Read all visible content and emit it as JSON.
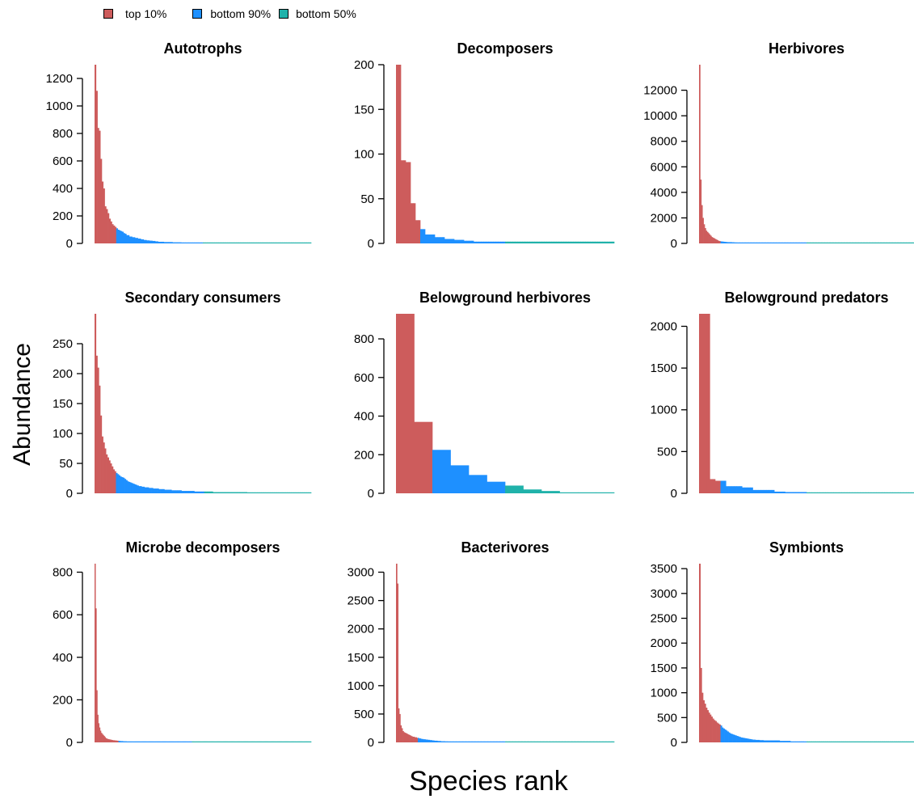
{
  "legend": {
    "items": [
      {
        "label": "top 10%",
        "color": "#CD5C5C"
      },
      {
        "label": "bottom 90%",
        "color": "#1E90FF"
      },
      {
        "label": "bottom 50%",
        "color": "#20B2AA"
      }
    ]
  },
  "axes": {
    "ylabel": "Abundance",
    "xlabel": "Species rank"
  },
  "chart_data": [
    {
      "type": "bar",
      "title": "Autotrophs",
      "ylim": [
        0,
        1300
      ],
      "yticks": [
        0,
        200,
        400,
        600,
        800,
        1000,
        1200
      ],
      "values": [
        1300,
        1110,
        840,
        820,
        615,
        450,
        400,
        270,
        250,
        220,
        180,
        160,
        140,
        130,
        120,
        110,
        100,
        95,
        90,
        85,
        75,
        70,
        60,
        60,
        50,
        50,
        45,
        45,
        40,
        40,
        35,
        35,
        30,
        30,
        25,
        25,
        22,
        22,
        20,
        20,
        18,
        18,
        15,
        15,
        12,
        12,
        12,
        12,
        10,
        10,
        10,
        10,
        10,
        10,
        8,
        8,
        8,
        8,
        8,
        8,
        6,
        6,
        6,
        6,
        6,
        6,
        4,
        4,
        4,
        4,
        4,
        4,
        4,
        4,
        3,
        3,
        3,
        3,
        3,
        3,
        3,
        3,
        2,
        2,
        2,
        2,
        2,
        2,
        2,
        2,
        2,
        2,
        2,
        2,
        2,
        2,
        2,
        2,
        1,
        1,
        1,
        1,
        1,
        1,
        1,
        1,
        1,
        1,
        1,
        1,
        1,
        1,
        1,
        1,
        1,
        1,
        1,
        1,
        1,
        1,
        1,
        1,
        1,
        1,
        1,
        1,
        1,
        1,
        1,
        1,
        1,
        1,
        1,
        1,
        1,
        1,
        1,
        1,
        1,
        1,
        1,
        1,
        1,
        1,
        1,
        1,
        1,
        1,
        1,
        1
      ],
      "n_top10": 15,
      "n_bottom50": 75
    },
    {
      "type": "bar",
      "title": "Decomposers",
      "ylim": [
        0,
        200
      ],
      "yticks": [
        0,
        50,
        100,
        150,
        200
      ],
      "values": [
        205,
        205,
        93,
        93,
        91,
        91,
        45,
        45,
        26,
        26,
        16,
        16,
        10,
        10,
        10,
        10,
        7,
        7,
        7,
        7,
        5,
        5,
        5,
        5,
        4,
        4,
        4,
        4,
        3,
        3,
        3,
        3,
        2,
        2,
        2,
        2,
        2,
        2,
        2,
        2,
        2,
        2,
        2,
        2,
        2,
        2,
        2,
        2,
        2,
        2,
        2,
        2,
        2,
        2,
        2,
        2,
        2,
        2,
        2,
        2,
        2,
        2,
        2,
        2,
        2,
        2,
        2,
        2,
        2,
        2,
        2,
        2,
        2,
        2,
        2,
        2,
        2,
        2,
        2,
        2,
        2,
        2,
        2,
        2,
        2,
        2,
        2,
        2,
        2,
        2
      ],
      "n_top10": 10,
      "n_bottom50": 45
    },
    {
      "type": "bar",
      "title": "Herbivores",
      "ylim": [
        0,
        14000
      ],
      "yticks": [
        0,
        2000,
        4000,
        6000,
        8000,
        10000,
        12000
      ],
      "values": [
        14000,
        5000,
        3000,
        2000,
        1500,
        1200,
        1000,
        900,
        800,
        700,
        600,
        500,
        450,
        400,
        350,
        300,
        250,
        200,
        180,
        160,
        150,
        140,
        130,
        120,
        110,
        100,
        100,
        100,
        100,
        90,
        90,
        80,
        80,
        70,
        70,
        60,
        60,
        55,
        55,
        50,
        50,
        45,
        45,
        40,
        40,
        35,
        35,
        30,
        30,
        30,
        25,
        25,
        25,
        20,
        20,
        20,
        20,
        18,
        18,
        18,
        15,
        15,
        15,
        15,
        12,
        12,
        12,
        12,
        10,
        10,
        10,
        10,
        10,
        10,
        8,
        8,
        8,
        8,
        8,
        8,
        7,
        7,
        7,
        7,
        7,
        7,
        6,
        6,
        6,
        6,
        6,
        6,
        5,
        5,
        5,
        5,
        5,
        5,
        5,
        5,
        4,
        4,
        4,
        4,
        4,
        4,
        4,
        4,
        4,
        4,
        3,
        3,
        3,
        3,
        3,
        3,
        3,
        3,
        3,
        3,
        3,
        3,
        2,
        2,
        2,
        2,
        2,
        2,
        2,
        2,
        2,
        2,
        2,
        2,
        2,
        2,
        2,
        2,
        2,
        2,
        1,
        1,
        1,
        1,
        1,
        1,
        1,
        1,
        1,
        1,
        1,
        1,
        1,
        1,
        1,
        1,
        1,
        1,
        1,
        1,
        1,
        1,
        1,
        1,
        1,
        1,
        1,
        1,
        1,
        1,
        1,
        1,
        1,
        1,
        1,
        1,
        1,
        1,
        1,
        1,
        1,
        1,
        1,
        1,
        1,
        1,
        1,
        1,
        1,
        1
      ],
      "n_top10": 19,
      "n_bottom50": 95
    },
    {
      "type": "bar",
      "title": "Secondary consumers",
      "ylim": [
        0,
        300
      ],
      "yticks": [
        0,
        50,
        100,
        150,
        200,
        250
      ],
      "values": [
        300,
        230,
        210,
        180,
        130,
        95,
        85,
        75,
        65,
        60,
        55,
        50,
        45,
        40,
        37,
        34,
        32,
        30,
        28,
        27,
        26,
        24,
        22,
        20,
        19,
        18,
        17,
        16,
        15,
        14,
        13,
        12,
        12,
        11,
        11,
        10,
        10,
        10,
        9,
        9,
        9,
        8,
        8,
        8,
        8,
        7,
        7,
        7,
        7,
        6,
        6,
        6,
        6,
        6,
        5,
        5,
        5,
        5,
        5,
        5,
        5,
        4,
        4,
        4,
        4,
        4,
        4,
        4,
        4,
        4,
        3,
        3,
        3,
        3,
        3,
        3,
        3,
        3,
        3,
        3,
        3,
        3,
        3,
        2,
        2,
        2,
        2,
        2,
        2,
        2,
        2,
        2,
        2,
        2,
        2,
        2,
        2,
        2,
        2,
        2,
        2,
        2,
        2,
        2,
        2,
        2,
        2,
        1,
        1,
        1,
        1,
        1,
        1,
        1,
        1,
        1,
        1,
        1,
        1,
        1,
        1,
        1,
        1,
        1,
        1,
        1,
        1,
        1,
        1,
        1,
        1,
        1,
        1,
        1,
        1,
        1,
        1,
        1,
        1,
        1,
        1,
        1,
        1,
        1,
        1,
        1,
        1,
        1,
        1,
        1,
        1,
        1
      ],
      "n_top10": 15,
      "n_bottom50": 75
    },
    {
      "type": "bar",
      "title": "Belowground herbivores",
      "ylim": [
        0,
        930
      ],
      "yticks": [
        0,
        200,
        400,
        600,
        800
      ],
      "values": [
        930,
        370,
        225,
        145,
        95,
        60,
        40,
        20,
        12,
        4,
        2,
        1
      ],
      "n_top10": 2,
      "n_bottom50": 6
    },
    {
      "type": "bar",
      "title": "Belowground predators",
      "ylim": [
        0,
        2150
      ],
      "yticks": [
        0,
        500,
        1000,
        1500,
        2000
      ],
      "values": [
        2150,
        2150,
        2150,
        2150,
        170,
        170,
        150,
        150,
        150,
        150,
        85,
        85,
        85,
        85,
        85,
        85,
        70,
        70,
        70,
        70,
        40,
        40,
        40,
        40,
        40,
        40,
        40,
        40,
        20,
        20,
        20,
        20,
        15,
        15,
        15,
        15,
        15,
        15,
        15,
        15,
        10,
        10,
        10,
        10,
        10,
        10,
        10,
        10,
        10,
        10,
        10,
        10,
        10,
        10,
        10,
        10,
        10,
        10,
        10,
        10,
        10,
        10,
        10,
        10,
        10,
        10,
        10,
        10,
        10,
        10,
        10,
        10,
        10,
        10,
        10,
        10,
        10,
        10,
        10,
        10
      ],
      "n_top10": 8,
      "n_bottom50": 40
    },
    {
      "type": "bar",
      "title": "Microbe decomposers",
      "ylim": [
        0,
        840
      ],
      "yticks": [
        0,
        200,
        400,
        600,
        800
      ],
      "values": [
        840,
        630,
        245,
        130,
        90,
        70,
        55,
        45,
        40,
        35,
        30,
        25,
        20,
        18,
        16,
        15,
        14,
        13,
        12,
        11,
        10,
        10,
        9,
        9,
        8,
        8,
        7,
        7,
        6,
        6,
        6,
        5,
        5,
        5,
        5,
        4,
        4,
        4,
        4,
        4,
        3,
        3,
        3,
        3,
        3,
        3,
        3,
        3,
        3,
        3,
        2,
        2,
        2,
        2,
        2,
        2,
        2,
        2,
        2,
        2,
        2,
        2,
        2,
        2,
        2,
        2,
        2,
        2,
        2,
        2,
        2,
        2,
        2,
        2,
        2,
        2,
        2,
        2,
        2,
        2,
        2,
        2,
        2,
        2,
        2,
        2,
        2,
        2,
        2,
        2,
        2,
        2,
        2,
        2,
        2,
        2,
        2,
        2,
        2,
        2,
        2,
        2,
        2,
        2,
        2,
        2,
        2,
        2,
        2,
        2,
        2,
        2,
        2,
        2,
        2,
        2,
        2,
        2,
        2,
        2,
        1,
        1,
        1,
        1,
        1,
        1,
        1,
        1,
        1,
        1,
        1,
        1,
        1,
        1,
        1,
        1,
        1,
        1,
        1,
        1,
        1,
        1,
        1,
        1,
        1,
        1,
        1,
        1,
        1,
        1,
        1,
        1,
        1,
        1,
        1,
        1,
        1,
        1,
        1,
        1,
        1,
        1,
        1,
        1,
        1,
        1,
        1,
        1,
        1,
        1,
        1,
        1,
        1,
        1,
        1,
        1,
        1,
        1,
        1,
        1,
        1,
        1,
        1,
        1,
        1,
        1,
        1,
        1,
        1,
        1,
        1,
        1,
        1,
        1,
        1,
        1,
        1,
        1,
        1,
        1,
        1,
        1,
        1,
        1,
        1,
        1,
        1,
        1,
        1,
        1,
        1,
        1,
        1,
        1,
        1,
        1,
        1,
        1,
        1,
        1,
        1,
        1,
        1,
        1,
        1,
        1,
        1,
        1,
        1,
        1,
        1,
        1,
        1,
        1,
        1,
        1
      ],
      "n_top10": 26,
      "n_bottom50": 130
    },
    {
      "type": "bar",
      "title": "Bacterivores",
      "ylim": [
        0,
        3150
      ],
      "yticks": [
        0,
        500,
        1000,
        1500,
        2000,
        2500,
        3000
      ],
      "values": [
        3150,
        2800,
        600,
        500,
        300,
        250,
        200,
        180,
        170,
        160,
        150,
        140,
        130,
        120,
        110,
        100,
        100,
        90,
        90,
        80,
        80,
        70,
        70,
        60,
        60,
        55,
        55,
        50,
        50,
        45,
        45,
        40,
        40,
        35,
        35,
        30,
        30,
        30,
        25,
        25,
        25,
        20,
        20,
        20,
        20,
        18,
        18,
        18,
        15,
        15,
        15,
        15,
        12,
        12,
        12,
        12,
        10,
        10,
        10,
        10,
        10,
        10,
        8,
        8,
        8,
        8,
        8,
        8,
        7,
        7,
        7,
        7,
        7,
        7,
        6,
        6,
        6,
        6,
        6,
        6,
        5,
        5,
        5,
        5,
        5,
        5,
        5,
        5,
        4,
        4,
        4,
        4,
        4,
        4,
        4,
        4,
        3,
        3,
        3,
        3,
        3,
        3,
        3,
        3,
        3,
        3,
        3,
        3,
        2,
        2,
        2,
        2,
        2,
        2,
        2,
        2,
        2,
        2,
        2,
        2,
        2,
        2,
        2,
        2,
        2,
        2,
        1,
        1,
        1,
        1,
        1,
        1,
        1,
        1,
        1,
        1,
        1,
        1,
        1,
        1,
        1,
        1,
        1,
        1,
        1,
        1,
        1,
        1,
        1,
        1,
        1,
        1,
        1,
        1,
        1,
        1,
        1,
        1,
        1,
        1,
        1,
        1,
        1,
        1,
        1,
        1,
        1,
        1,
        1,
        1,
        1,
        1,
        1,
        1,
        1,
        1,
        1,
        1,
        1,
        1,
        1,
        1,
        1,
        1,
        1,
        1,
        1,
        1,
        1,
        1,
        1,
        1,
        1,
        1,
        1,
        1,
        1,
        1,
        1,
        1
      ],
      "n_top10": 20,
      "n_bottom50": 100
    },
    {
      "type": "bar",
      "title": "Symbionts",
      "ylim": [
        0,
        3600
      ],
      "yticks": [
        0,
        500,
        1000,
        1500,
        2000,
        2500,
        3000,
        3500
      ],
      "values": [
        3600,
        1500,
        1000,
        850,
        780,
        700,
        650,
        600,
        560,
        520,
        480,
        450,
        430,
        400,
        380,
        360,
        340,
        300,
        280,
        260,
        240,
        220,
        200,
        180,
        170,
        160,
        150,
        140,
        130,
        120,
        110,
        100,
        95,
        90,
        85,
        80,
        75,
        70,
        65,
        60,
        55,
        55,
        50,
        50,
        50,
        45,
        45,
        45,
        40,
        40,
        40,
        40,
        40,
        40,
        40,
        40,
        40,
        40,
        40,
        40,
        30,
        30,
        30,
        30,
        30,
        30,
        30,
        30,
        20,
        20,
        20,
        20,
        20,
        20,
        20,
        20,
        20,
        20,
        15,
        15,
        15,
        15,
        15,
        15,
        15,
        15,
        15,
        10,
        10,
        10,
        10,
        10,
        10,
        10,
        10,
        10,
        10,
        10,
        10,
        10,
        10,
        10,
        10,
        10,
        10,
        10,
        10,
        10,
        10,
        10,
        10,
        10,
        10,
        10,
        10,
        10,
        10,
        10,
        10,
        10,
        10,
        10,
        10,
        10,
        10,
        10,
        10,
        10,
        10,
        10,
        10,
        10,
        10,
        10,
        10,
        10,
        10,
        10,
        10,
        10,
        10,
        10,
        10,
        10,
        10,
        10,
        10,
        10,
        10,
        10,
        10,
        10,
        10,
        10,
        10,
        10,
        10,
        10,
        10,
        10
      ],
      "n_top10": 16,
      "n_bottom50": 80
    }
  ]
}
